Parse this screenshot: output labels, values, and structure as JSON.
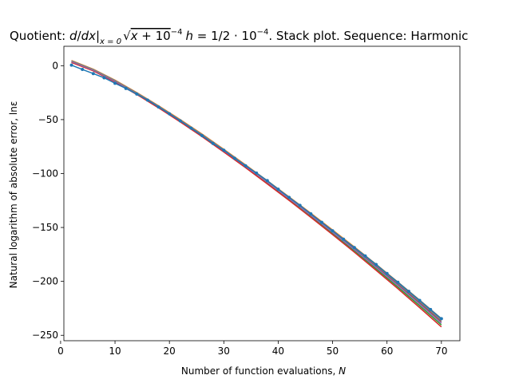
{
  "chart_data": {
    "type": "line",
    "title_parts": {
      "prefix": "Quotient: ",
      "d": "d",
      "slash": "/",
      "dx": "dx",
      "bar": "|",
      "sub": "x = 0",
      "radicand_x": "x",
      "radicand_plus": " + 10",
      "radicand_exp": "−4",
      "h": "h",
      "eq": " = 1/2 · 10",
      "h_exp": "−4",
      "suffix": ". Stack plot. Sequence: Harmonic"
    },
    "xlabel_main": "Number of function evaluations, ",
    "xlabel_var": "N",
    "ylabel": "Natural logarithm of absolute error, lnε",
    "xlim": [
      0.6,
      73.4
    ],
    "ylim": [
      -255,
      18
    ],
    "xticks": [
      0,
      10,
      20,
      30,
      40,
      50,
      60,
      70
    ],
    "yticks": [
      0,
      -50,
      -100,
      -150,
      -200,
      -250
    ],
    "grid": false,
    "series": [
      {
        "color": "#1f77b4",
        "style": "dots",
        "x": [
          2,
          4,
          6,
          8,
          10,
          12,
          14,
          16,
          18,
          20,
          22,
          24,
          26,
          28,
          30,
          32,
          34,
          36,
          38,
          40,
          42,
          44,
          46,
          48,
          50,
          52,
          54,
          56,
          58,
          60,
          62,
          64,
          66,
          68,
          70
        ],
        "values": [
          0.5,
          -3.5,
          -7.3,
          -11.2,
          -16.3,
          -21.1,
          -26.3,
          -31.9,
          -38.3,
          -44.6,
          -51.2,
          -57.9,
          -64.9,
          -72.1,
          -78.4,
          -85.9,
          -92.8,
          -99.5,
          -106.6,
          -114.5,
          -122.1,
          -129.5,
          -137.4,
          -145.2,
          -153.1,
          -160.9,
          -168.6,
          -176.4,
          -184.3,
          -192.7,
          -200.8,
          -209.2,
          -217.6,
          -226.1,
          -234.6
        ]
      },
      {
        "color": "#ff7f0e",
        "style": "line",
        "x": [
          2,
          6,
          10,
          14,
          18,
          22,
          26,
          30,
          34,
          38,
          42,
          46,
          50,
          54,
          58,
          62,
          66,
          70
        ],
        "values": [
          4.8,
          -3.2,
          -13.4,
          -24.9,
          -37.1,
          -50.0,
          -63.4,
          -77.5,
          -91.9,
          -106.6,
          -121.6,
          -136.8,
          -152.3,
          -168.0,
          -184.1,
          -200.6,
          -217.3,
          -234.5
        ]
      },
      {
        "color": "#2ca02c",
        "style": "line",
        "x": [
          2,
          6,
          10,
          14,
          18,
          22,
          26,
          30,
          34,
          38,
          42,
          46,
          50,
          54,
          58,
          62,
          66,
          70
        ],
        "values": [
          3.5,
          -4.3,
          -14.6,
          -26.1,
          -38.5,
          -51.5,
          -65.0,
          -79.1,
          -93.6,
          -108.5,
          -123.7,
          -139.3,
          -155.3,
          -171.6,
          -188.3,
          -205.3,
          -222.6,
          -240.3
        ]
      },
      {
        "color": "#d62728",
        "style": "line",
        "x": [
          2,
          6,
          10,
          14,
          18,
          22,
          26,
          30,
          34,
          38,
          42,
          46,
          50,
          54,
          58,
          62,
          66,
          70
        ],
        "values": [
          3.0,
          -4.8,
          -15.1,
          -26.7,
          -39.1,
          -52.2,
          -65.8,
          -80.0,
          -94.6,
          -109.6,
          -124.9,
          -140.6,
          -156.6,
          -172.9,
          -189.7,
          -206.8,
          -224.3,
          -242.2
        ]
      },
      {
        "color": "#8c564b",
        "style": "line",
        "x": [
          2,
          6,
          10,
          14,
          18,
          22,
          26,
          30,
          34,
          38,
          42,
          46,
          50,
          54,
          58,
          62,
          66,
          70
        ],
        "values": [
          4.2,
          -3.8,
          -14.0,
          -25.5,
          -37.8,
          -50.8,
          -64.3,
          -78.4,
          -92.8,
          -107.6,
          -122.7,
          -138.1,
          -153.8,
          -169.8,
          -186.2,
          -202.9,
          -219.9,
          -237.4
        ]
      },
      {
        "color": "#9467bd",
        "style": "line",
        "x": [
          2,
          6,
          10,
          14,
          18,
          22,
          26,
          30,
          34,
          38,
          42,
          46,
          50,
          54,
          58,
          62,
          66,
          70
        ],
        "values": [
          3.8,
          -4.1,
          -14.3,
          -25.8,
          -38.2,
          -51.2,
          -64.7,
          -78.8,
          -93.3,
          -108.1,
          -123.2,
          -138.7,
          -154.5,
          -170.6,
          -187.1,
          -203.9,
          -221.1,
          -238.8
        ]
      },
      {
        "color": "#7f7f7f",
        "style": "line",
        "x": [
          2,
          6,
          10,
          14,
          18,
          22,
          26,
          30,
          34,
          38,
          42,
          46,
          50,
          54,
          58,
          62,
          66,
          70
        ],
        "values": [
          4.5,
          -3.5,
          -13.7,
          -25.2,
          -37.4,
          -50.4,
          -63.8,
          -77.9,
          -92.3,
          -107.1,
          -122.1,
          -137.4,
          -153.0,
          -168.9,
          -185.1,
          -201.7,
          -218.6,
          -235.9
        ]
      }
    ]
  }
}
